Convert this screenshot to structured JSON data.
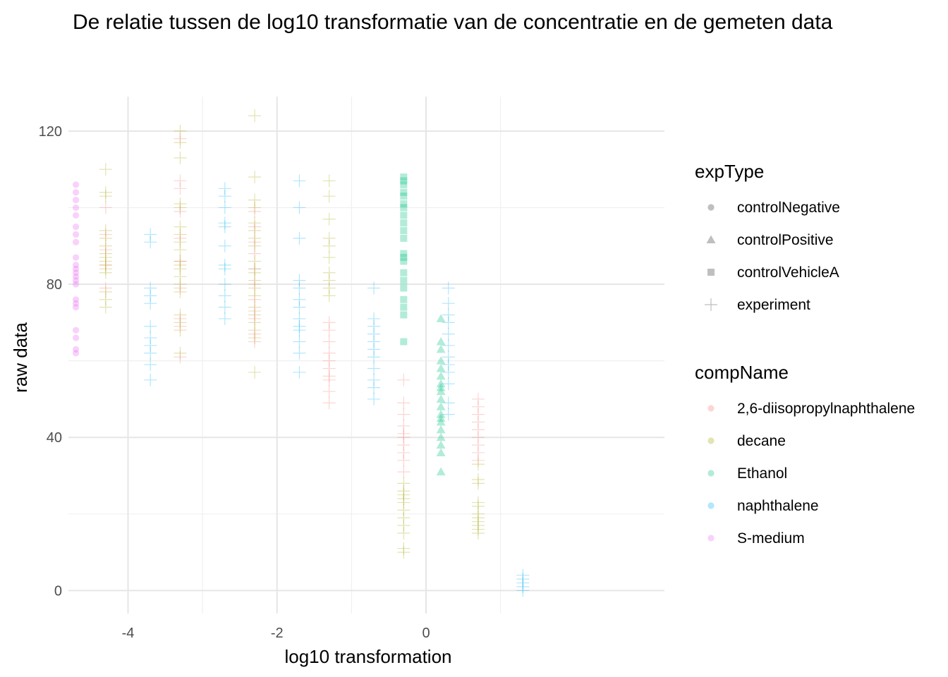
{
  "chart_data": {
    "type": "scatter",
    "title": "De relatie tussen de log10 transformatie van de concentratie en de gemeten data",
    "xlabel": "log10 transformation",
    "ylabel": "raw data",
    "xlim": [
      -4.8,
      3.2
    ],
    "ylim": [
      -6,
      129
    ],
    "x_ticks": [
      -4,
      -2,
      0
    ],
    "x_tick_labels": [
      "-4",
      "-2",
      "0"
    ],
    "y_ticks": [
      0,
      40,
      80,
      120
    ],
    "y_tick_labels": [
      "0",
      "40",
      "80",
      "120"
    ],
    "grid": true,
    "legend_position": "right",
    "legends": [
      {
        "title": "expType",
        "entries": [
          {
            "label": "controlNegative",
            "shape": "circle"
          },
          {
            "label": "controlPositive",
            "shape": "triangle"
          },
          {
            "label": "controlVehicleA",
            "shape": "square"
          },
          {
            "label": "experiment",
            "shape": "plus"
          }
        ]
      },
      {
        "title": "compName",
        "entries": [
          {
            "label": "2,6-diisopropylnaphthalene",
            "color": "#F8766D"
          },
          {
            "label": "decane",
            "color": "#A3A500"
          },
          {
            "label": "Ethanol",
            "color": "#00BF7D"
          },
          {
            "label": "naphthalene",
            "color": "#00B0F6"
          },
          {
            "label": "S-medium",
            "color": "#E76BF3"
          }
        ]
      }
    ],
    "point_alpha": 0.3,
    "series": [
      {
        "name": "S-medium",
        "shape": "circle",
        "color": "#E76BF3",
        "x": -4.7,
        "y": [
          106,
          104,
          102,
          100,
          98,
          95,
          93,
          91,
          87,
          85,
          84,
          83,
          82,
          81,
          80,
          76,
          75,
          74,
          68,
          66,
          63,
          62
        ]
      },
      {
        "name": "decane",
        "shape": "plus",
        "color": "#A3A500",
        "x": -4.3,
        "y": [
          110,
          104,
          103,
          94,
          92,
          90,
          88,
          87,
          86,
          85,
          84,
          83,
          78,
          76,
          74
        ]
      },
      {
        "name": "2,6-diisopropylnaphthalene",
        "shape": "plus",
        "color": "#F8766D",
        "x": -4.3,
        "y": [
          100,
          93,
          89,
          85,
          79
        ]
      },
      {
        "name": "naphthalene",
        "shape": "plus",
        "color": "#00B0F6",
        "x": -3.7,
        "y": [
          93,
          91,
          79,
          77,
          75,
          69,
          66,
          64,
          62,
          59,
          55
        ]
      },
      {
        "name": "decane",
        "shape": "plus",
        "color": "#A3A500",
        "x": -3.3,
        "y": [
          120,
          117,
          113,
          101,
          100,
          95,
          93,
          91,
          89,
          86,
          85,
          84,
          82,
          80,
          78,
          72,
          70,
          68,
          62
        ]
      },
      {
        "name": "2,6-diisopropylnaphthalene",
        "shape": "plus",
        "color": "#F8766D",
        "x": -3.3,
        "y": [
          118,
          107,
          105,
          99,
          92,
          86,
          79,
          71,
          69,
          61
        ]
      },
      {
        "name": "naphthalene",
        "shape": "plus",
        "color": "#00B0F6",
        "x": -2.7,
        "y": [
          105,
          103,
          100,
          96,
          95,
          90,
          85,
          84,
          80,
          77,
          74,
          71
        ]
      },
      {
        "name": "decane",
        "shape": "plus",
        "color": "#A3A500",
        "x": -2.3,
        "y": [
          124,
          108,
          102,
          100,
          96,
          94,
          92,
          90,
          86,
          84,
          83,
          81,
          79,
          77,
          74,
          72,
          70,
          68,
          66,
          57
        ]
      },
      {
        "name": "2,6-diisopropylnaphthalene",
        "shape": "plus",
        "color": "#F8766D",
        "x": -2.3,
        "y": [
          99,
          95,
          91,
          88,
          84,
          80,
          76,
          73,
          71,
          67,
          65
        ]
      },
      {
        "name": "naphthalene",
        "shape": "plus",
        "color": "#00B0F6",
        "x": -1.7,
        "y": [
          107,
          100,
          92,
          81,
          79,
          76,
          74,
          71,
          69,
          68,
          65,
          62,
          57
        ]
      },
      {
        "name": "decane",
        "shape": "plus",
        "color": "#A3A500",
        "x": -1.3,
        "y": [
          107,
          103,
          97,
          92,
          90,
          87,
          83,
          81,
          79,
          77
        ]
      },
      {
        "name": "2,6-diisopropylnaphthalene",
        "shape": "plus",
        "color": "#F8766D",
        "x": -1.3,
        "y": [
          70,
          68,
          65,
          62,
          60,
          58,
          56,
          55,
          52,
          49
        ]
      },
      {
        "name": "naphthalene",
        "shape": "plus",
        "color": "#00B0F6",
        "x": -0.7,
        "y": [
          79,
          71,
          69,
          67,
          65,
          63,
          61,
          58,
          55,
          53,
          50
        ]
      },
      {
        "name": "Ethanol",
        "shape": "square",
        "color": "#00BF7D",
        "x": -0.3,
        "y": [
          108,
          107,
          106,
          104,
          103,
          101,
          100,
          98,
          96,
          94,
          92,
          88,
          87,
          86,
          83,
          81,
          79,
          76,
          74,
          72,
          65
        ]
      },
      {
        "name": "2,6-diisopropylnaphthalene",
        "shape": "plus",
        "color": "#F8766D",
        "x": -0.3,
        "y": [
          55,
          49,
          46,
          43,
          41,
          40,
          38,
          36,
          34,
          31
        ]
      },
      {
        "name": "decane",
        "shape": "plus",
        "color": "#A3A500",
        "x": -0.3,
        "y": [
          28,
          26,
          25,
          24,
          23,
          21,
          19,
          17,
          15,
          11,
          10
        ]
      },
      {
        "name": "Ethanol",
        "shape": "triangle",
        "color": "#00BF7D",
        "x": 0.2,
        "y": [
          71,
          65,
          63,
          60,
          58,
          56,
          54,
          53,
          52,
          50,
          48,
          46,
          45,
          44,
          42,
          40,
          38,
          36,
          31
        ]
      },
      {
        "name": "naphthalene",
        "shape": "plus",
        "color": "#00B0F6",
        "x": 0.3,
        "y": [
          79,
          75,
          72,
          70,
          67,
          64,
          61,
          59,
          57,
          54,
          49,
          46
        ]
      },
      {
        "name": "2,6-diisopropylnaphthalene",
        "shape": "plus",
        "color": "#F8766D",
        "x": 0.7,
        "y": [
          50,
          48,
          46,
          44,
          42,
          40,
          38,
          36,
          34
        ]
      },
      {
        "name": "decane",
        "shape": "plus",
        "color": "#A3A500",
        "x": 0.7,
        "y": [
          33,
          29,
          28,
          23,
          22,
          20,
          19,
          18,
          17,
          16,
          15
        ]
      },
      {
        "name": "naphthalene",
        "shape": "plus",
        "color": "#00B0F6",
        "x": 1.3,
        "y": [
          4,
          3,
          2,
          1,
          0
        ]
      }
    ]
  }
}
